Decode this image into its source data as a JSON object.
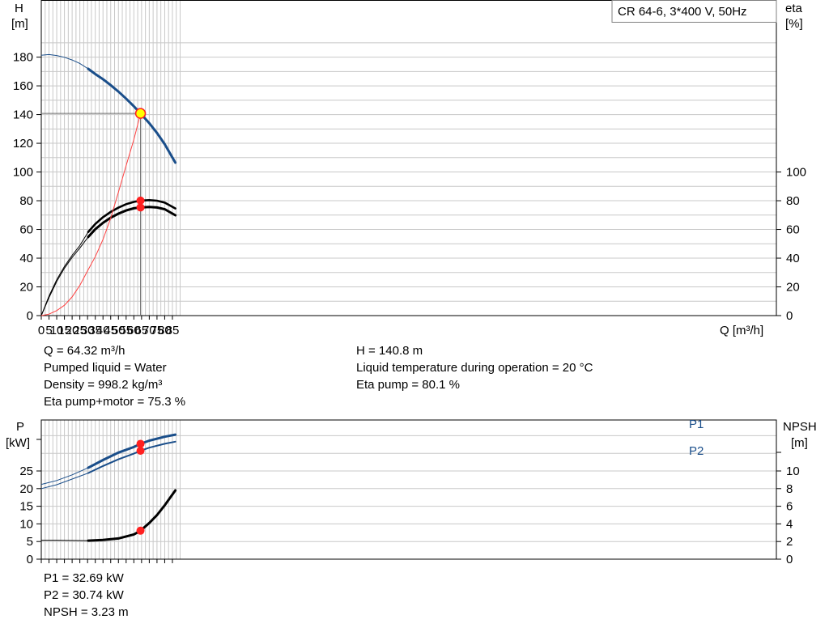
{
  "model_box": "CR 64-6, 3*400 V, 50Hz",
  "colors": {
    "head": "#1a4e8a",
    "power": "#1a4e8a",
    "efficiency": "#000000",
    "npsh": "#000000",
    "shaft": "#ff4040",
    "marker": "#ff2020",
    "duty_fill": "#ffff00",
    "grid": "#c8c8c8"
  },
  "upper_info": {
    "left": [
      "Q = 64.32 m³/h",
      "Pumped liquid = Water",
      "Density = 998.2 kg/m³",
      "Eta pump+motor = 75.3 %"
    ],
    "right": [
      "H = 140.8 m",
      "Liquid temperature during operation = 20 °C",
      "Eta pump = 80.1 %"
    ]
  },
  "lower_info": [
    "P1 = 32.69 kW",
    "P2 = 30.74 kW",
    "NPSH = 3.23 m"
  ],
  "chart_data": [
    {
      "type": "line",
      "title": "",
      "xlabel": "Q [m³/h]",
      "xlim": [
        0,
        90
      ],
      "x_ticks": [
        0,
        5,
        10,
        15,
        20,
        25,
        30,
        35,
        40,
        45,
        50,
        55,
        60,
        65,
        70,
        75,
        80,
        85
      ],
      "left_axis": {
        "label_top": "H",
        "label_unit": "[m]",
        "ylim": [
          0,
          190
        ],
        "ticks": [
          0,
          20,
          40,
          60,
          80,
          100,
          120,
          140,
          160,
          180
        ]
      },
      "right_axis": {
        "label_top": "eta",
        "label_unit": "[%]",
        "ylim": [
          0,
          190
        ],
        "ticks": [
          0,
          20,
          40,
          60,
          80,
          100
        ]
      },
      "duty_point": {
        "x": 64.32,
        "y": 140.8
      },
      "series": [
        {
          "key": "head",
          "x": [
            0,
            5,
            10,
            15,
            20,
            25,
            30.4,
            35,
            40,
            45,
            50,
            55,
            60,
            64.32,
            70,
            75,
            80,
            86.9
          ],
          "y": [
            181.3,
            181.8,
            181.1,
            179.9,
            178.0,
            175.6,
            171.9,
            168.2,
            164.6,
            160.5,
            156.0,
            151.1,
            145.8,
            140.8,
            134.0,
            127.2,
            119.4,
            106.5
          ],
          "thin_until": 30.4,
          "width": 3
        },
        {
          "key": "eta_pump",
          "x": [
            0,
            5,
            10,
            15,
            20,
            25,
            30.4,
            35,
            40,
            45,
            50,
            55,
            60,
            64.32,
            70,
            75,
            80,
            86.9
          ],
          "y": [
            0,
            13.5,
            25.0,
            34.2,
            42.0,
            48.8,
            58.2,
            63.8,
            68.5,
            72.2,
            75.2,
            77.6,
            79.2,
            80.1,
            80.4,
            80.0,
            78.7,
            74.6
          ],
          "thin_until": 30.4,
          "width": 2.6
        },
        {
          "key": "eta_total",
          "x": [
            0,
            5,
            10,
            15,
            20,
            25,
            30.4,
            35,
            40,
            45,
            50,
            55,
            60,
            64.32,
            70,
            75,
            80,
            86.9
          ],
          "y": [
            0,
            12.5,
            23.8,
            33.0,
            40.5,
            47.0,
            54.7,
            60.2,
            64.6,
            68.2,
            71.0,
            73.2,
            74.7,
            75.3,
            75.7,
            75.3,
            74.1,
            69.9
          ],
          "thin_until": 30.4,
          "width": 3
        },
        {
          "key": "shaft",
          "x": [
            0,
            5,
            10,
            15,
            20,
            25,
            30,
            35,
            40,
            45,
            50,
            55,
            60,
            64.32
          ],
          "y": [
            0,
            1.0,
            3.5,
            7.2,
            13.0,
            21.0,
            31.2,
            41.0,
            53.0,
            67.8,
            86.0,
            104.5,
            122.5,
            140.8
          ],
          "width": 1,
          "color": "#ff4040"
        }
      ],
      "markers": [
        {
          "x": 64.32,
          "y": 80.1
        },
        {
          "x": 64.32,
          "y": 75.3
        }
      ]
    },
    {
      "type": "line",
      "title": "",
      "xlim": [
        0,
        90
      ],
      "left_axis": {
        "label_top": "P",
        "label_unit": "[kW]",
        "ylim": [
          0,
          40
        ],
        "ticks": [
          0,
          5,
          10,
          15,
          20,
          25
        ]
      },
      "right_axis": {
        "label_top": "NPSH",
        "label_unit": "[m]",
        "ylim": [
          0,
          16
        ],
        "ticks": [
          0,
          2,
          4,
          6,
          8,
          10
        ]
      },
      "series": [
        {
          "key": "P1",
          "name": "P1",
          "axis": "left",
          "x": [
            0,
            10,
            20,
            30.4,
            40,
            50,
            60,
            64.32,
            70,
            80,
            86.9
          ],
          "y": [
            21.2,
            22.3,
            23.9,
            25.9,
            28.1,
            30.2,
            31.8,
            32.69,
            33.6,
            34.7,
            35.3
          ],
          "thin_until": 30.4,
          "width": 3
        },
        {
          "key": "P2",
          "name": "P2",
          "axis": "left",
          "x": [
            0,
            10,
            20,
            30.4,
            40,
            50,
            60,
            64.32,
            70,
            80,
            86.9
          ],
          "y": [
            20.0,
            21.1,
            22.7,
            24.4,
            26.4,
            28.3,
            29.9,
            30.74,
            31.6,
            32.7,
            33.3
          ],
          "thin_until": 30.4,
          "width": 2
        },
        {
          "key": "NPSH",
          "axis": "right",
          "x": [
            0,
            10,
            20,
            30.4,
            40,
            50,
            60,
            64.32,
            70,
            75,
            80,
            86.9
          ],
          "y": [
            2.15,
            2.15,
            2.12,
            2.1,
            2.18,
            2.35,
            2.8,
            3.23,
            4.1,
            5.0,
            6.1,
            7.8
          ],
          "thin_until": 30.4,
          "width": 3
        }
      ],
      "markers": [
        {
          "axis": "left",
          "x": 64.32,
          "y": 32.69
        },
        {
          "axis": "left",
          "x": 64.32,
          "y": 30.74
        },
        {
          "axis": "right",
          "x": 64.32,
          "y": 3.23
        }
      ]
    }
  ]
}
